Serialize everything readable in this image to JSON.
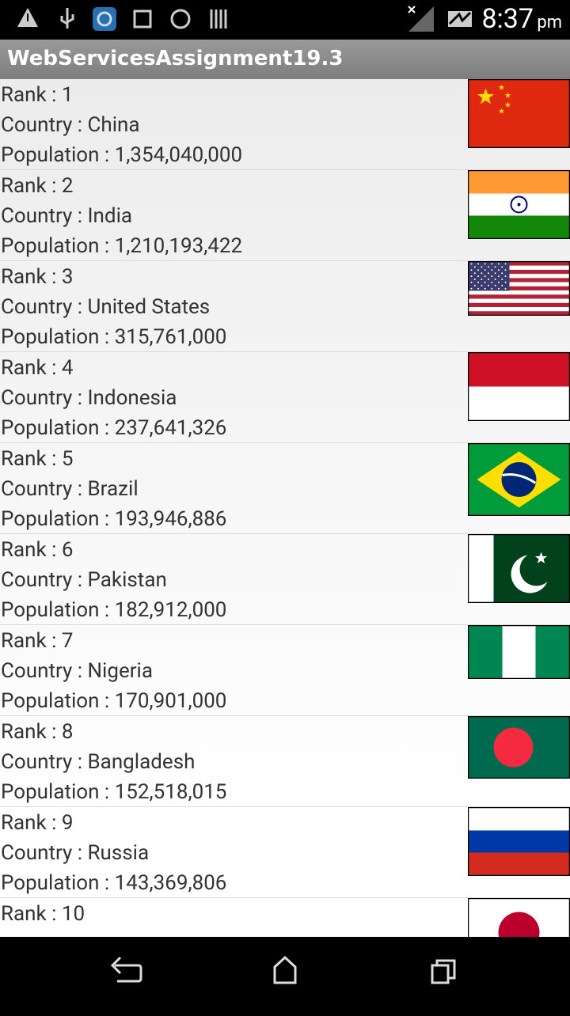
{
  "status_bar": {
    "time": "8:37",
    "ampm": "pm"
  },
  "app_bar": {
    "title": "WebServicesAssignment19.3"
  },
  "list": {
    "rows": [
      {
        "rank": "Rank : 1",
        "country": "Country : China",
        "population": "Population : 1,354,040,000"
      },
      {
        "rank": "Rank : 2",
        "country": "Country : India",
        "population": "Population : 1,210,193,422"
      },
      {
        "rank": "Rank : 3",
        "country": "Country : United States",
        "population": "Population : 315,761,000"
      },
      {
        "rank": "Rank : 4",
        "country": "Country : Indonesia",
        "population": "Population : 237,641,326"
      },
      {
        "rank": "Rank : 5",
        "country": "Country : Brazil",
        "population": "Population : 193,946,886"
      },
      {
        "rank": "Rank : 6",
        "country": "Country : Pakistan",
        "population": "Population : 182,912,000"
      },
      {
        "rank": "Rank : 7",
        "country": "Country : Nigeria",
        "population": "Population : 170,901,000"
      },
      {
        "rank": "Rank : 8",
        "country": "Country : Bangladesh",
        "population": "Population : 152,518,015"
      },
      {
        "rank": "Rank : 9",
        "country": "Country : Russia",
        "population": "Population : 143,369,806"
      },
      {
        "rank": "Rank : 10"
      }
    ]
  }
}
